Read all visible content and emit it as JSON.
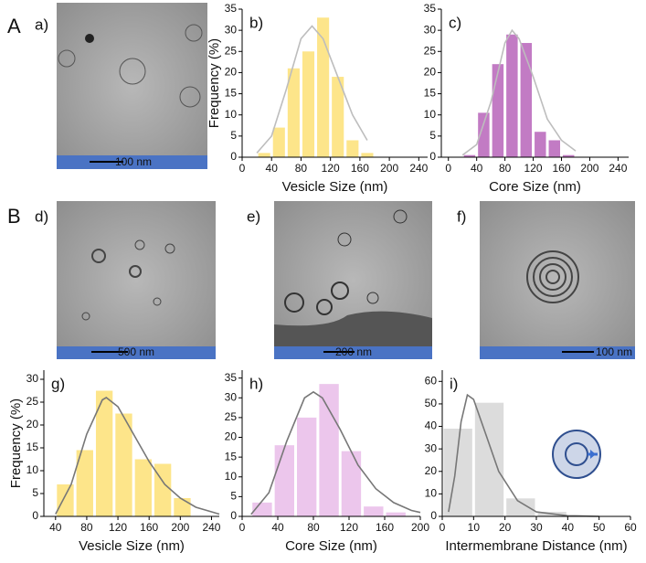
{
  "row_labels": [
    "A",
    "B"
  ],
  "images": [
    {
      "label": "a)",
      "scale": "100 nm"
    },
    {
      "label": "d)",
      "scale": "500 nm"
    },
    {
      "label": "e)",
      "scale": "200 nm"
    },
    {
      "label": "f)",
      "scale": "100 nm"
    }
  ],
  "chart_data": [
    {
      "type": "histogram",
      "label": "b)",
      "xlabel": "Vesicle Size (nm)",
      "ylabel": "Frequency (%)",
      "bins": [
        20,
        40,
        60,
        80,
        100,
        120,
        140,
        160,
        180
      ],
      "counts": [
        1,
        7,
        21,
        25,
        33,
        19,
        4,
        1
      ],
      "color": "#fde58a",
      "fit_x": [
        20,
        40,
        60,
        80,
        95,
        110,
        130,
        150,
        170
      ],
      "fit_y": [
        1,
        5,
        16,
        28,
        31,
        28,
        19,
        10,
        4
      ],
      "fit_color": "#bdbdbd",
      "xlim": [
        0,
        252
      ],
      "ylim": [
        0,
        35
      ],
      "xticks": [
        0,
        40,
        80,
        120,
        160,
        200,
        240
      ],
      "yticks": [
        0,
        5,
        10,
        15,
        20,
        25,
        30,
        35
      ]
    },
    {
      "type": "histogram",
      "label": "c)",
      "xlabel": "Core Size (nm)",
      "bins": [
        20,
        40,
        60,
        80,
        100,
        120,
        140,
        160,
        180
      ],
      "counts": [
        0.5,
        10.5,
        22,
        29,
        27,
        6,
        4,
        0.5
      ],
      "color": "#c27bc4",
      "fit_x": [
        20,
        40,
        60,
        80,
        90,
        100,
        120,
        140,
        160,
        180
      ],
      "fit_y": [
        0.5,
        3,
        13,
        27,
        30,
        28,
        19,
        9,
        4,
        1.5
      ],
      "fit_color": "#bdbdbd",
      "xlim": [
        -10,
        255
      ],
      "ylim": [
        0,
        35
      ],
      "xticks": [
        0,
        40,
        80,
        120,
        160,
        200,
        240
      ],
      "yticks": [
        0,
        5,
        10,
        15,
        20,
        25,
        30,
        35
      ]
    },
    {
      "type": "histogram",
      "label": "g)",
      "xlabel": "Vesicle Size (nm)",
      "ylabel": "Frequency (%)",
      "bins": [
        40,
        65,
        90,
        115,
        140,
        165,
        190,
        215
      ],
      "counts": [
        7,
        14.5,
        27.5,
        22.5,
        12.5,
        11.5,
        4
      ],
      "color": "#fde58a",
      "fit_x": [
        40,
        60,
        80,
        100,
        105,
        120,
        140,
        160,
        180,
        200,
        220,
        240,
        250
      ],
      "fit_y": [
        0.5,
        7,
        18,
        25.5,
        26,
        24,
        18,
        12,
        7,
        4,
        2,
        1,
        0.5
      ],
      "fit_color": "#777777",
      "xlim": [
        25,
        250
      ],
      "ylim": [
        0,
        32
      ],
      "xticks": [
        40,
        80,
        120,
        160,
        200,
        240
      ],
      "yticks": [
        0,
        5,
        10,
        15,
        20,
        25,
        30
      ]
    },
    {
      "type": "histogram",
      "label": "h)",
      "xlabel": "Core Size (nm)",
      "bins": [
        10,
        35,
        60,
        85,
        110,
        135,
        160,
        185
      ],
      "counts": [
        3.5,
        18,
        25,
        33.5,
        16.5,
        2.5,
        1
      ],
      "color": "#ecc6ec",
      "fit_x": [
        10,
        30,
        50,
        70,
        80,
        90,
        110,
        130,
        150,
        170,
        190,
        200
      ],
      "fit_y": [
        0.5,
        6,
        19,
        30,
        31.5,
        30,
        22,
        13,
        7,
        3.5,
        1.5,
        1
      ],
      "fit_color": "#777777",
      "xlim": [
        0,
        200
      ],
      "ylim": [
        0,
        37
      ],
      "xticks": [
        0,
        40,
        80,
        120,
        160,
        200
      ],
      "yticks": [
        0,
        5,
        10,
        15,
        20,
        25,
        30,
        35
      ]
    },
    {
      "type": "histogram",
      "label": "i)",
      "xlabel": "Intermembrane Distance (nm)",
      "bins": [
        0,
        10,
        20,
        30,
        40
      ],
      "counts": [
        39,
        50.5,
        8,
        2
      ],
      "color": "#dcdcdc",
      "fit_x": [
        2,
        4,
        6,
        8,
        10,
        14,
        18,
        24,
        30,
        40,
        50
      ],
      "fit_y": [
        2,
        18,
        42,
        54,
        52,
        36,
        20,
        7,
        2,
        0.3,
        0
      ],
      "fit_color": "#777777",
      "xlim": [
        0,
        60
      ],
      "ylim": [
        0,
        65
      ],
      "xticks": [
        0,
        10,
        20,
        30,
        40,
        50,
        60
      ],
      "yticks": [
        0,
        10,
        20,
        30,
        40,
        50,
        60
      ]
    }
  ]
}
